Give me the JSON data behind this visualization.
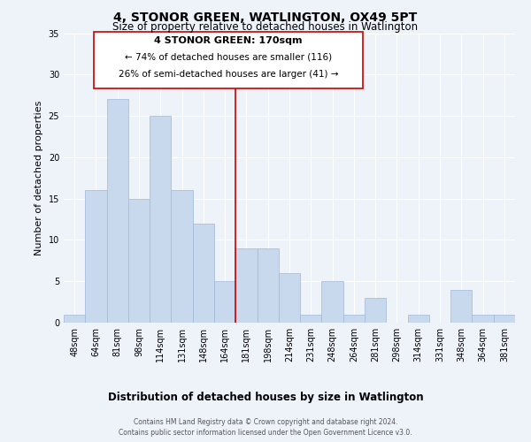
{
  "title": "4, STONOR GREEN, WATLINGTON, OX49 5PT",
  "subtitle": "Size of property relative to detached houses in Watlington",
  "xlabel": "Distribution of detached houses by size in Watlington",
  "ylabel": "Number of detached properties",
  "footnote1": "Contains HM Land Registry data © Crown copyright and database right 2024.",
  "footnote2": "Contains public sector information licensed under the Open Government Licence v3.0.",
  "bin_labels": [
    "48sqm",
    "64sqm",
    "81sqm",
    "98sqm",
    "114sqm",
    "131sqm",
    "148sqm",
    "164sqm",
    "181sqm",
    "198sqm",
    "214sqm",
    "231sqm",
    "248sqm",
    "264sqm",
    "281sqm",
    "298sqm",
    "314sqm",
    "331sqm",
    "348sqm",
    "364sqm",
    "381sqm"
  ],
  "bar_values": [
    1,
    16,
    27,
    15,
    25,
    16,
    12,
    5,
    9,
    9,
    6,
    1,
    5,
    1,
    3,
    0,
    1,
    0,
    4,
    1,
    1
  ],
  "bar_color": "#c8d9ee",
  "bar_edge_color": "#9fb8d8",
  "vline_x_index": 7.5,
  "vline_color": "#cc0000",
  "annotation_title": "4 STONOR GREEN: 170sqm",
  "annotation_line1": "← 74% of detached houses are smaller (116)",
  "annotation_line2": "26% of semi-detached houses are larger (41) →",
  "annotation_box_color": "#cc0000",
  "ylim": [
    0,
    35
  ],
  "yticks": [
    0,
    5,
    10,
    15,
    20,
    25,
    30,
    35
  ],
  "bg_color": "#eef2f9",
  "grid_color": "#ffffff",
  "title_fontsize": 10,
  "subtitle_fontsize": 8.5,
  "axis_label_fontsize": 8,
  "tick_fontsize": 7,
  "annotation_title_fontsize": 8,
  "annotation_text_fontsize": 7.5,
  "footnote_fontsize": 5.5
}
